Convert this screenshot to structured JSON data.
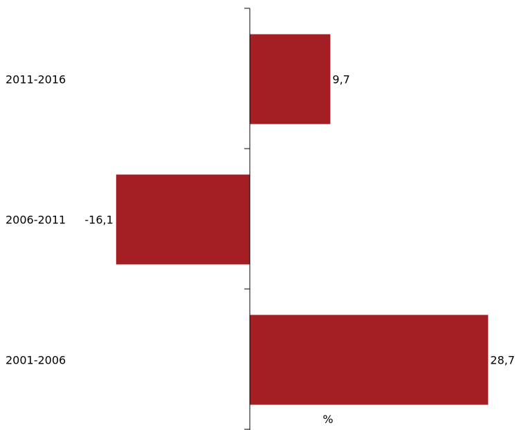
{
  "chart_data": {
    "type": "bar",
    "orientation": "horizontal",
    "categories": [
      "2011-2016",
      "2006-2011",
      "2001-2006"
    ],
    "values": [
      9.7,
      -16.1,
      28.7
    ],
    "value_labels": [
      "9,7",
      "-16,1",
      "28,7"
    ],
    "xlabel": "%",
    "ylabel": "",
    "title": "",
    "xlim": [
      -30,
      30
    ],
    "grid": false,
    "legend": "none",
    "bar_color": "#a31f24"
  }
}
